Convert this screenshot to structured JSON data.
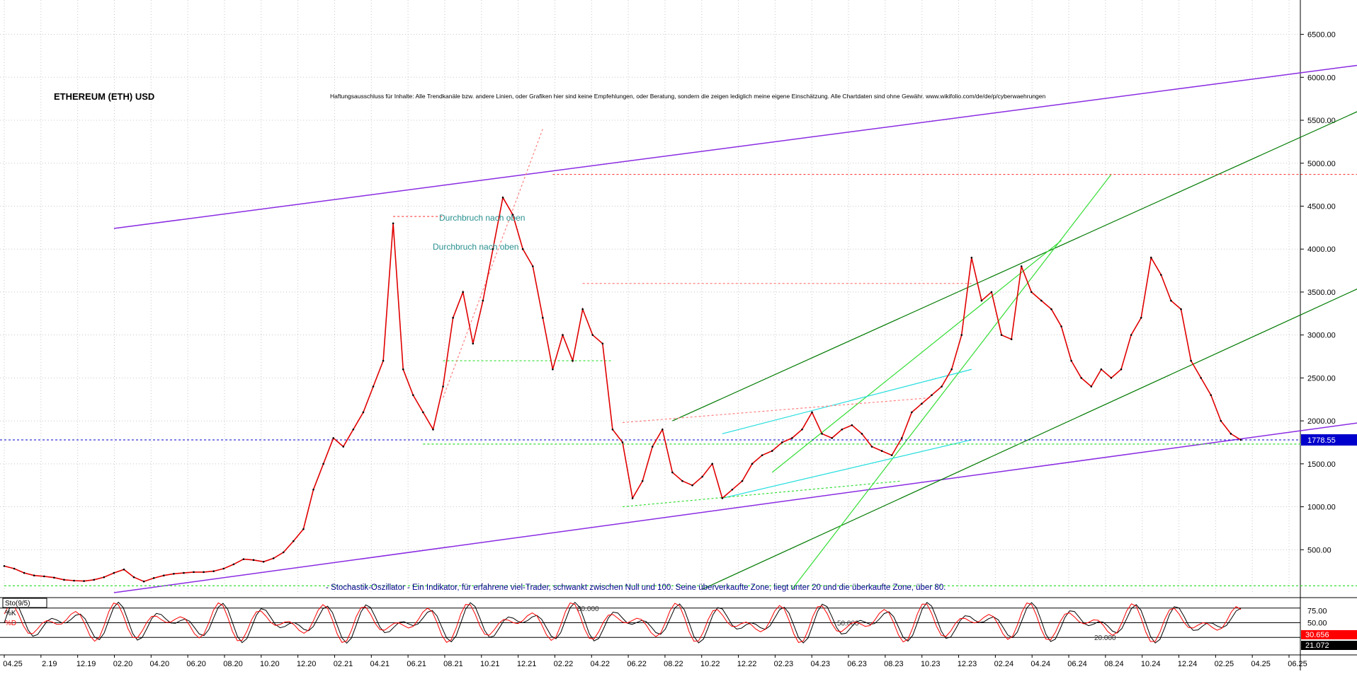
{
  "chart_data": [
    {
      "type": "line",
      "title": "ETHEREUM (ETH) USD",
      "disclaimer": "Haftungsausschluss für Inhalte: Alle Trendkanäle bzw. andere Linien, oder Grafiken hier sind keine Empfehlungen, oder Beratung, sondern die zeigen lediglich meine eigene Einschätzung. Alle Chartdaten sind ohne Gewähr.  www.wikifolio.com/de/de/p/cyberwaehrungen",
      "ylim": [
        0,
        6900
      ],
      "y_ticks": [
        500,
        1000,
        1500,
        2000,
        2500,
        3000,
        3500,
        4000,
        4500,
        5000,
        5500,
        6000,
        6500
      ],
      "y_tick_labels": [
        "500.00",
        "1000.00",
        "1500.00",
        "2000.00",
        "2500.00",
        "3000.00",
        "3500.00",
        "4000.00",
        "4500.00",
        "5000.00",
        "5500.00",
        "6000.00",
        "6500.00"
      ],
      "x_tick_labels": [
        "04.2025",
        "2.19",
        "12.19",
        "02.20",
        "04.20",
        "06.20",
        "08.20",
        "10.20",
        "12.20",
        "02.21",
        "04.21",
        "06.21",
        "08.21",
        "10.21",
        "12.21",
        "02.22",
        "04.22",
        "06.22",
        "08.22",
        "10.22",
        "12.22",
        "02.23",
        "04.23",
        "06.23",
        "08.23",
        "10.23",
        "12.23",
        "02.24",
        "04.24",
        "06.24",
        "08.24",
        "10.24",
        "12.24",
        "02.25",
        "04.25",
        "06.25"
      ],
      "x_tick_labels_shown": [
        "04.25",
        "2.19",
        "12.19",
        "02.20",
        "04.20",
        "06.20",
        "08.20",
        "10.20",
        "12.20",
        "02.21",
        "04.21",
        "06.21",
        "08.21",
        "10.21",
        "12.21",
        "02.22",
        "04.22",
        "06.22",
        "08.22",
        "10.22",
        "12.22",
        "02.23",
        "04.23",
        "06.23",
        "08.23",
        "10.23",
        "12.23",
        "02.24",
        "04.24",
        "06.24",
        "08.24",
        "10.24",
        "12.24",
        "02.25",
        "04.25",
        "06.25"
      ],
      "price_points": [
        [
          0,
          310
        ],
        [
          1,
          280
        ],
        [
          2,
          230
        ],
        [
          3,
          200
        ],
        [
          4,
          190
        ],
        [
          5,
          175
        ],
        [
          6,
          150
        ],
        [
          7,
          140
        ],
        [
          8,
          135
        ],
        [
          9,
          150
        ],
        [
          10,
          180
        ],
        [
          11,
          230
        ],
        [
          12,
          270
        ],
        [
          13,
          180
        ],
        [
          14,
          130
        ],
        [
          15,
          170
        ],
        [
          16,
          200
        ],
        [
          17,
          220
        ],
        [
          18,
          230
        ],
        [
          19,
          240
        ],
        [
          20,
          240
        ],
        [
          21,
          250
        ],
        [
          22,
          280
        ],
        [
          23,
          330
        ],
        [
          24,
          390
        ],
        [
          25,
          380
        ],
        [
          26,
          360
        ],
        [
          27,
          400
        ],
        [
          28,
          470
        ],
        [
          29,
          600
        ],
        [
          30,
          740
        ],
        [
          31,
          1200
        ],
        [
          32,
          1500
        ],
        [
          33,
          1800
        ],
        [
          34,
          1700
        ],
        [
          35,
          1900
        ],
        [
          36,
          2100
        ],
        [
          37,
          2400
        ],
        [
          38,
          2700
        ],
        [
          39,
          4300
        ],
        [
          40,
          2600
        ],
        [
          41,
          2300
        ],
        [
          42,
          2100
        ],
        [
          43,
          1900
        ],
        [
          44,
          2400
        ],
        [
          45,
          3200
        ],
        [
          46,
          3500
        ],
        [
          47,
          2900
        ],
        [
          48,
          3400
        ],
        [
          49,
          4000
        ],
        [
          50,
          4600
        ],
        [
          51,
          4400
        ],
        [
          52,
          4000
        ],
        [
          53,
          3800
        ],
        [
          54,
          3200
        ],
        [
          55,
          2600
        ],
        [
          56,
          3000
        ],
        [
          57,
          2700
        ],
        [
          58,
          3300
        ],
        [
          59,
          3000
        ],
        [
          60,
          2900
        ],
        [
          61,
          1900
        ],
        [
          62,
          1750
        ],
        [
          63,
          1100
        ],
        [
          64,
          1300
        ],
        [
          65,
          1700
        ],
        [
          66,
          1900
        ],
        [
          67,
          1400
        ],
        [
          68,
          1300
        ],
        [
          69,
          1250
        ],
        [
          70,
          1350
        ],
        [
          71,
          1500
        ],
        [
          72,
          1100
        ],
        [
          73,
          1200
        ],
        [
          74,
          1300
        ],
        [
          75,
          1500
        ],
        [
          76,
          1600
        ],
        [
          77,
          1650
        ],
        [
          78,
          1750
        ],
        [
          79,
          1800
        ],
        [
          80,
          1900
        ],
        [
          81,
          2100
        ],
        [
          82,
          1850
        ],
        [
          83,
          1800
        ],
        [
          84,
          1900
        ],
        [
          85,
          1950
        ],
        [
          86,
          1850
        ],
        [
          87,
          1700
        ],
        [
          88,
          1650
        ],
        [
          89,
          1600
        ],
        [
          90,
          1800
        ],
        [
          91,
          2100
        ],
        [
          92,
          2200
        ],
        [
          93,
          2300
        ],
        [
          94,
          2400
        ],
        [
          95,
          2600
        ],
        [
          96,
          3000
        ],
        [
          97,
          3900
        ],
        [
          98,
          3400
        ],
        [
          99,
          3500
        ],
        [
          100,
          3000
        ],
        [
          101,
          2950
        ],
        [
          102,
          3800
        ],
        [
          103,
          3500
        ],
        [
          104,
          3400
        ],
        [
          105,
          3300
        ],
        [
          106,
          3100
        ],
        [
          107,
          2700
        ],
        [
          108,
          2500
        ],
        [
          109,
          2400
        ],
        [
          110,
          2600
        ],
        [
          111,
          2500
        ],
        [
          112,
          2600
        ],
        [
          113,
          3000
        ],
        [
          114,
          3200
        ],
        [
          115,
          3900
        ],
        [
          116,
          3700
        ],
        [
          117,
          3400
        ],
        [
          118,
          3300
        ],
        [
          119,
          2700
        ],
        [
          120,
          2500
        ],
        [
          121,
          2300
        ],
        [
          122,
          2000
        ],
        [
          123,
          1850
        ],
        [
          124,
          1778.55
        ]
      ],
      "last_price_label": "1778.55",
      "annotations": [
        "Durchbruch nach oben",
        "Durchbruch nach oben"
      ]
    },
    {
      "type": "line",
      "indicator": "Sto(9/5)",
      "series": [
        {
          "name": "%K",
          "color": "#000000",
          "last": "30.656"
        },
        {
          "name": "%D",
          "color": "#ff0000",
          "last": "21.072"
        }
      ],
      "ylim": [
        0,
        100
      ],
      "y_tick_labels": [
        "75.00",
        "50.00"
      ],
      "level_labels": [
        "80.000",
        "50.000",
        "20.000"
      ],
      "note": "- Stochastik-Oszillator - Ein Indikator, für erfahrene viel-Trader, schwankt zwischen Null und 100. Seine überverkaufte Zone, liegt unter 20 und die überkaufte Zone, über 80."
    }
  ],
  "colors": {
    "price_line": "#e00000",
    "price_last_box": "#0000cc",
    "stoch_k_last_box": "#ff0000",
    "stoch_d_last_box": "#000000",
    "channel": "#8a2be2",
    "trend_dark_green": "#007a00",
    "trend_light_green": "#33dd33",
    "cyan": "#22dddd",
    "title_text": "#000000",
    "note_text": "#00008b",
    "annotation_text": "#2a9090"
  }
}
